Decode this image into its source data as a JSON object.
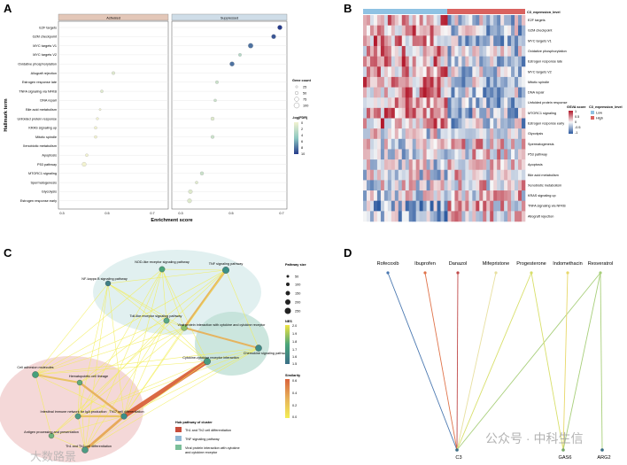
{
  "panel_labels": {
    "a": "A",
    "b": "B",
    "c": "C",
    "d": "D"
  },
  "panel_a": {
    "facets": [
      "Activated",
      "Suppressed"
    ],
    "ylabel": "Hallmark term",
    "xlabel": "Enrichment score",
    "x_ticks_left": [
      "0.3",
      "0.5",
      "0.7"
    ],
    "x_ticks_right": [
      "0.3",
      "0.5",
      "0.7"
    ],
    "terms": [
      "E2F targets",
      "G2M checkpoint",
      "MYC targets V1",
      "MYC targets V2",
      "Oxidative phosphorylation",
      "Allograft rejection",
      "Estrogen response late",
      "TNFA signaling via NFKB",
      "DNA repair",
      "Bile acid metabolism",
      "Unfolded protein response",
      "KRAS signaling up",
      "Mitotic spindle",
      "Xenobiotic metabolism",
      "Apoptosis",
      "P53 pathway",
      "MTORC1 signaling",
      "Spermatogenesis",
      "Glycolysis",
      "Estrogen response early"
    ],
    "legend_count_title": "Gene count",
    "legend_count_values": [
      "25",
      "50",
      "75",
      "100"
    ],
    "legend_fdr_title": "-log(FDR)",
    "legend_fdr_values": [
      "0",
      "2",
      "4",
      "6",
      "8",
      "10"
    ]
  },
  "panel_b": {
    "annotation_title": "C3_expression_level",
    "heatmap_terms": [
      "E2F targets",
      "G2M checkpoint",
      "MYC targets V1",
      "Oxidative phosphorylation",
      "Estrogen response late",
      "MYC targets V2",
      "Mitotic spindle",
      "DNA repair",
      "Unfolded protein response",
      "MTORC1 signaling",
      "Estrogen response early",
      "Glycolysis",
      "Spermatogenesis",
      "P53 pathway",
      "Apoptosis",
      "Bile acid metabolism",
      "Xenobiotic metabolism",
      "KRAS signaling up",
      "TNFA signaling via NFKB",
      "Allograft rejection"
    ],
    "legend_gsva_title": "GSVA score",
    "legend_gsva_values": [
      "1",
      "0.5",
      "0",
      "-0.5",
      "-1"
    ],
    "legend_level_title": "C3_expression_level",
    "legend_level_values": [
      "Low",
      "High"
    ]
  },
  "panel_c": {
    "nodes": [
      "NOD-like receptor signaling pathway",
      "TNF signaling pathway",
      "NF-kappa B signaling pathway",
      "Toll-like receptor signaling pathway",
      "Viral protein interaction with cytokine and cytokine receptor",
      "Chemokine signaling pathway",
      "Cytokine-cytokine receptor interaction",
      "Cell adhesion molecules",
      "Hematopoietic cell lineage",
      "Intestinal immune network for IgA production",
      "Th17 cell differentiation",
      "Antigen processing and presentation",
      "Th1 and Th2 cell differentiation"
    ],
    "legend_size_title": "Pathway size",
    "legend_size_values": [
      "50",
      "100",
      "150",
      "200",
      "250"
    ],
    "legend_nes_title": "NES",
    "legend_nes_values": [
      "2.0",
      "1.9",
      "1.8",
      "1.7",
      "1.6",
      "1.5"
    ],
    "legend_sim_title": "Similarity",
    "legend_sim_values": [
      "0.6",
      "0.4",
      "0.2",
      "0.0"
    ],
    "hub_title": "Hub pathway of cluster",
    "hub_items": [
      "Th1 and Th2 cell differentiation",
      "TNF signaling pathway",
      "Viral protein interaction with cytokine",
      "and cytokine receptor"
    ]
  },
  "panel_d": {
    "drugs": [
      "Rofecoxib",
      "Ibuprofen",
      "Danazol",
      "Mifepristone",
      "Progesterone",
      "Indomethacin",
      "Resveratrol"
    ],
    "targets": [
      "C3",
      "GAS6",
      "ARG2"
    ]
  },
  "watermark": {
    "line1": "公众号 · 中科生信",
    "line2": "大数路景"
  }
}
